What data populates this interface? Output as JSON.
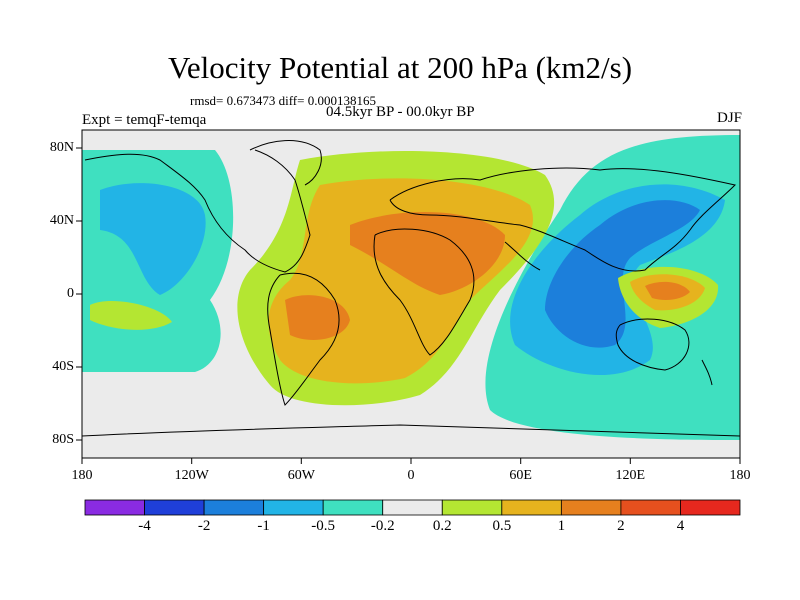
{
  "title": "Velocity Potential at 200 hPa (km2/s)",
  "stats": "rmsd= 0.673473 diff= 0.000138165",
  "experiment": "Expt = temqF-temqa",
  "period": "04.5kyr BP - 00.0kyr BP",
  "season": "DJF",
  "lat_labels": [
    "80N",
    "40N",
    "0",
    "40S",
    "80S"
  ],
  "lon_labels": [
    "180",
    "120W",
    "60W",
    "0",
    "60E",
    "120E",
    "180"
  ],
  "colorbar": {
    "colors": [
      "#8a2be2",
      "#1f3fd9",
      "#1c7fdb",
      "#22b4e6",
      "#3fe0c0",
      "#ebebeb",
      "#b4e632",
      "#e6b31e",
      "#e6801e",
      "#e6501e",
      "#e6281e"
    ],
    "labels": [
      "-4",
      "-2",
      "-1",
      "-0.5",
      "-0.2",
      "0.2",
      "0.5",
      "1",
      "2",
      "4"
    ]
  },
  "palette": {
    "background": "#ebebeb",
    "teal": "#3fe0c0",
    "light_blue": "#22b4e6",
    "blue": "#1c7fdb",
    "yellow_green": "#b4e632",
    "gold": "#e6b31e",
    "orange": "#e6801e",
    "red_orange": "#e6501e"
  }
}
